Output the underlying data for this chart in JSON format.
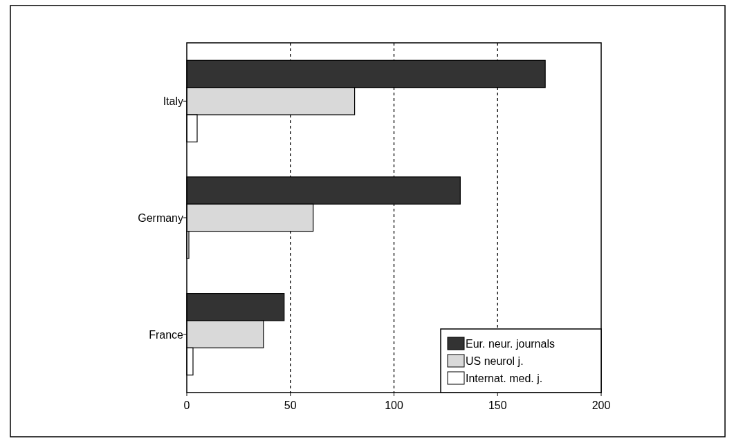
{
  "chart_data": {
    "type": "bar",
    "orientation": "horizontal",
    "categories": [
      "Italy",
      "Germany",
      "France"
    ],
    "series": [
      {
        "name": "Eur. neur. journals",
        "color": "#333333",
        "values": [
          173,
          132,
          47
        ]
      },
      {
        "name": "US neurol j.",
        "color": "#d9d9d9",
        "values": [
          81,
          61,
          37
        ]
      },
      {
        "name": "Internat. med. j.",
        "color": "#ffffff",
        "values": [
          5,
          1,
          3
        ]
      }
    ],
    "xlim": [
      0,
      200
    ],
    "xticks": [
      0,
      50,
      100,
      150,
      200
    ],
    "grid": "x",
    "line_style": "dashed",
    "legend": "bottom right"
  }
}
